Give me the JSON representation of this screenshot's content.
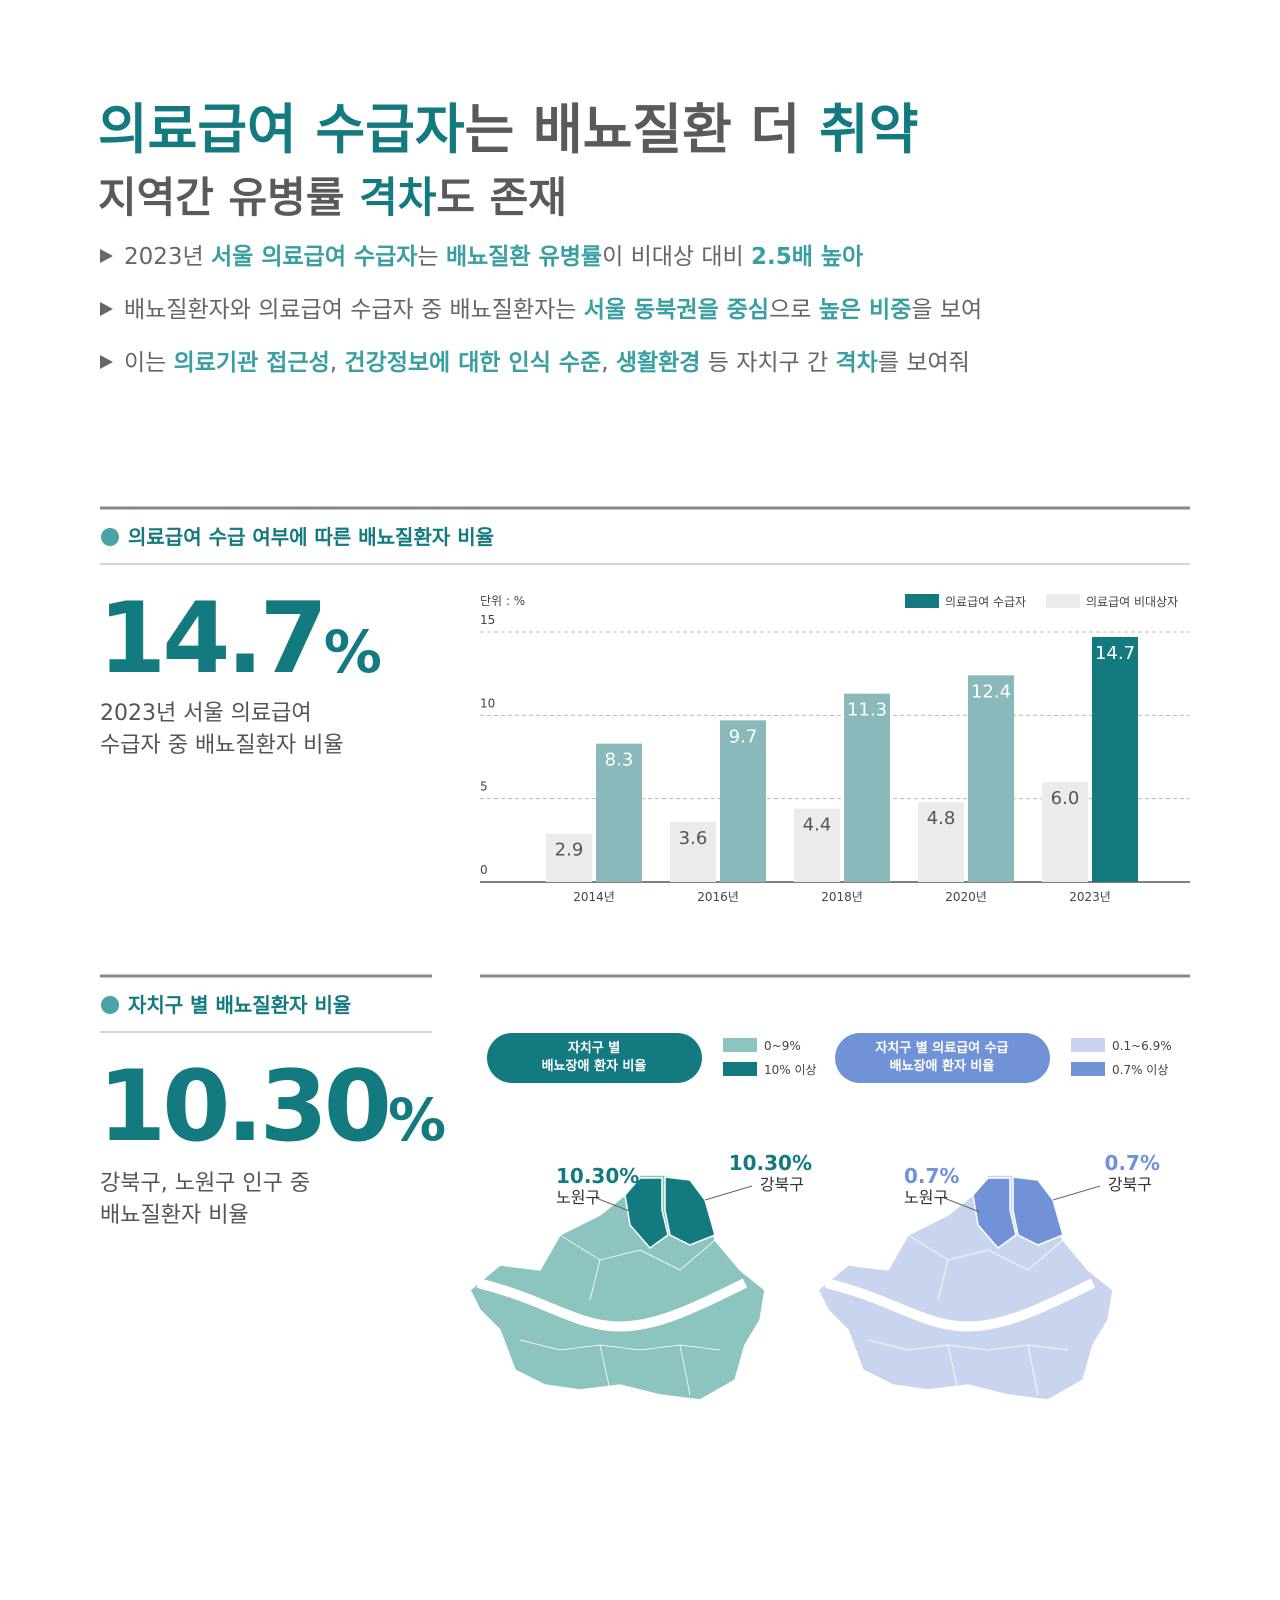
{
  "header": {
    "title_lines": [
      [
        {
          "text": "의료급여 수급자",
          "em": true
        },
        {
          "text": "는 배뇨질환 더 ",
          "em": false
        },
        {
          "text": "취약",
          "em": true
        }
      ],
      [
        {
          "text": "지역간 유병률 ",
          "em": false
        },
        {
          "text": "격차",
          "em": true
        },
        {
          "text": "도 존재",
          "em": false
        }
      ]
    ],
    "bullets": [
      [
        {
          "text": "2023년 ",
          "em": false
        },
        {
          "text": "서울 의료급여 수급자",
          "em": true
        },
        {
          "text": "는 ",
          "em": false
        },
        {
          "text": "배뇨질환 유병률",
          "em": true
        },
        {
          "text": "이 비대상 대비 ",
          "em": false
        },
        {
          "text": "2.5배 높아",
          "em": true
        }
      ],
      [
        {
          "text": "배뇨질환자와 의료급여 수급자 중 배뇨질환자는 ",
          "em": false
        },
        {
          "text": "서울 동북권을 중심",
          "em": true
        },
        {
          "text": "으로 ",
          "em": false
        },
        {
          "text": "높은 비중",
          "em": true
        },
        {
          "text": "을 보여",
          "em": false
        }
      ],
      [
        {
          "text": "이는 ",
          "em": false
        },
        {
          "text": "의료기관 접근성",
          "em": true
        },
        {
          "text": ", ",
          "em": false
        },
        {
          "text": "건강정보에 대한 인식 수준",
          "em": true
        },
        {
          "text": ", ",
          "em": false
        },
        {
          "text": "생활환경",
          "em": true
        },
        {
          "text": " 등 자치구 간 ",
          "em": false
        },
        {
          "text": "격차",
          "em": true
        },
        {
          "text": "를 보여줘",
          "em": false
        }
      ]
    ]
  },
  "section1": {
    "heading": "의료급여 수급 여부에 따른 배뇨질환자 비율",
    "stat": {
      "number": "14.7",
      "unit": "%"
    },
    "description": [
      "2023년 서울 의료급여",
      "수급자 중 배뇨질환자 비율"
    ]
  },
  "chart_data": {
    "type": "bar",
    "unit_label": "단위 : %",
    "categories": [
      "2014년",
      "2016년",
      "2018년",
      "2020년",
      "2023년"
    ],
    "series": [
      {
        "name": "의료급여 수급자",
        "color": "#137a80",
        "colors": [
          "#8ab9bc",
          "#8ab9bc",
          "#8ab9bc",
          "#8ab9bc",
          "#137a80"
        ],
        "values": [
          8.3,
          9.7,
          11.3,
          12.4,
          14.7
        ]
      },
      {
        "name": "의료급여 비대상자",
        "color": "#ebebeb",
        "values": [
          2.9,
          3.6,
          4.4,
          4.8,
          6
        ],
        "value_labels": [
          "2.9",
          "3.6",
          "4.4",
          "4.8",
          "6.0"
        ]
      }
    ],
    "ylim": [
      0,
      15
    ],
    "yticks": [
      0,
      5,
      10,
      15
    ],
    "grid": true
  },
  "section2": {
    "heading": "자치구 별 배뇨질환자 비율",
    "stat": {
      "number": "10.30",
      "unit": "%"
    },
    "description": [
      "강북구, 노원구 인구 중",
      "배뇨질환자 비율"
    ],
    "maps": [
      {
        "label": [
          "자치구 별",
          "배뇨장애 환자 비율"
        ],
        "color": "#137a80",
        "legend": [
          {
            "label": "0~9%",
            "color": "#8cc4c0"
          },
          {
            "label": "10% 이상",
            "color": "#137a80"
          }
        ],
        "callouts": [
          {
            "value": "10.30%",
            "district": "노원구"
          },
          {
            "value": "10.30%",
            "district": "강북구"
          }
        ]
      },
      {
        "label": [
          "자치구 별 의료급여 수급",
          "배뇨장애 환자 비율"
        ],
        "color": "#6f93d6",
        "legend": [
          {
            "label": "0.1~6.9%",
            "color": "#c9d4ee"
          },
          {
            "label": "0.7% 이상",
            "color": "#6f93d6"
          }
        ],
        "callouts": [
          {
            "value": "0.7%",
            "district": "노원구"
          },
          {
            "value": "0.7%",
            "district": "강북구"
          }
        ]
      }
    ]
  }
}
